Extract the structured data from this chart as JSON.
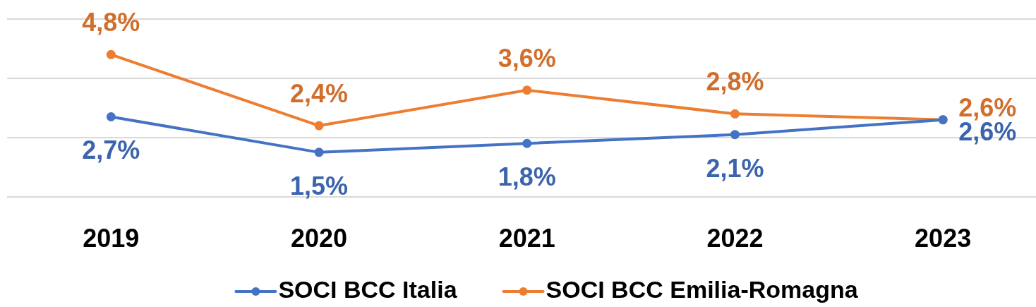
{
  "chart_data": {
    "type": "line",
    "categories": [
      "2019",
      "2020",
      "2021",
      "2022",
      "2023"
    ],
    "series": [
      {
        "name": "SOCI BCC Italia",
        "color": "#4472c4",
        "values": [
          2.7,
          1.5,
          1.8,
          2.1,
          2.6
        ],
        "value_labels": [
          "2,7%",
          "1,5%",
          "1,8%",
          "2,1%",
          "2,6%"
        ]
      },
      {
        "name": "SOCI BCC Emilia-Romagna",
        "color": "#ed7d31",
        "values": [
          4.8,
          2.4,
          3.6,
          2.8,
          2.6
        ],
        "value_labels": [
          "4,8%",
          "2,4%",
          "3,6%",
          "2,8%",
          "2,6%"
        ]
      }
    ],
    "ylim": [
      0,
      6
    ],
    "yticks": [
      {
        "value": 0,
        "label": null
      },
      {
        "value": 2,
        "label": null
      },
      {
        "value": 4,
        "label": null
      },
      {
        "value": 6,
        "label": null
      }
    ],
    "grid": "y",
    "legend": "bottom",
    "tick_labels": "x",
    "marker": "circle",
    "line_style": "solid"
  }
}
